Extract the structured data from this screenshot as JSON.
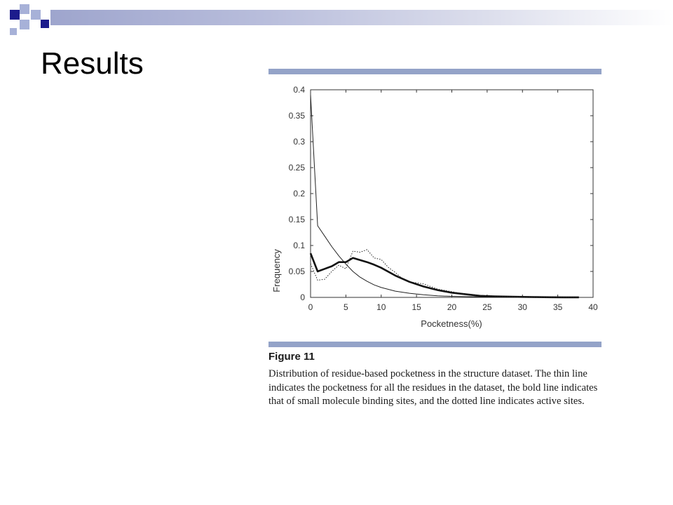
{
  "slide": {
    "title": "Results"
  },
  "figure": {
    "label": "Figure 11",
    "caption": "Distribution of residue-based pocketness in the structure dataset. The thin line indicates the pocketness for all the residues in the dataset, the bold line indicates that of small molecule binding sites, and the dotted line indicates active sites."
  },
  "colors": {
    "accent_dark": "#1c1c8c",
    "accent_light": "#a7b1d8",
    "rule": "#94a3c8"
  },
  "chart_data": {
    "type": "line",
    "title": "",
    "xlabel": "Pocketness(%)",
    "ylabel": "Frequency",
    "xlim": [
      0,
      40
    ],
    "ylim": [
      0,
      0.4
    ],
    "xticks": [
      0,
      5,
      10,
      15,
      20,
      25,
      30,
      35,
      40
    ],
    "yticks": [
      0,
      0.05,
      0.1,
      0.15,
      0.2,
      0.25,
      0.3,
      0.35,
      0.4
    ],
    "grid": false,
    "series": [
      {
        "style": "thin",
        "x": [
          0,
          1,
          2,
          3,
          4,
          5,
          6,
          7,
          8,
          9,
          10,
          12,
          14,
          16,
          18,
          20,
          22,
          24,
          26,
          28,
          30,
          32,
          34,
          36,
          38
        ],
        "y": [
          0.39,
          0.138,
          0.118,
          0.098,
          0.08,
          0.064,
          0.05,
          0.039,
          0.031,
          0.024,
          0.019,
          0.012,
          0.008,
          0.005,
          0.003,
          0.002,
          0.0015,
          0.001,
          0.0008,
          0.0005,
          0.0003,
          0.0002,
          0.0001,
          0.0001,
          0.0001
        ]
      },
      {
        "style": "bold",
        "x": [
          0,
          1,
          2,
          3,
          4,
          5,
          6,
          7,
          8,
          9,
          10,
          12,
          14,
          16,
          18,
          20,
          22,
          24,
          26,
          28,
          30,
          32,
          34,
          36,
          38
        ],
        "y": [
          0.085,
          0.05,
          0.055,
          0.06,
          0.068,
          0.068,
          0.076,
          0.072,
          0.068,
          0.063,
          0.057,
          0.042,
          0.03,
          0.021,
          0.014,
          0.009,
          0.006,
          0.003,
          0.002,
          0.0015,
          0.001,
          0.0005,
          0.0003,
          0.0002,
          0.0001
        ]
      },
      {
        "style": "dotted",
        "x": [
          0,
          1,
          2,
          3,
          4,
          5,
          6,
          7,
          8,
          9,
          10,
          11,
          12,
          13,
          14,
          15,
          16,
          18,
          20,
          22,
          24,
          26,
          28,
          30,
          32,
          34,
          36,
          38
        ],
        "y": [
          0.065,
          0.033,
          0.035,
          0.05,
          0.062,
          0.055,
          0.089,
          0.087,
          0.092,
          0.076,
          0.073,
          0.058,
          0.048,
          0.036,
          0.03,
          0.028,
          0.026,
          0.016,
          0.011,
          0.006,
          0.004,
          0.002,
          0.0015,
          0.001,
          0.0005,
          0.0003,
          0.0002,
          0.0001
        ]
      }
    ]
  }
}
